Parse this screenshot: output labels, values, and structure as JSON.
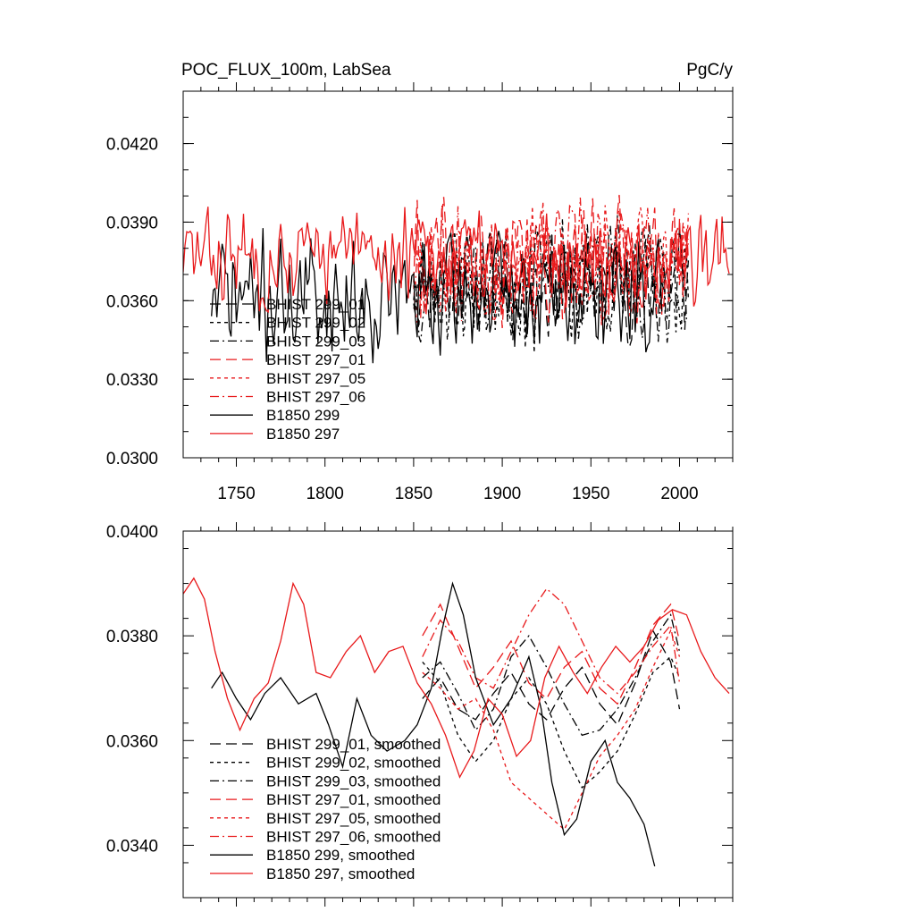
{
  "colors": {
    "black": "#000000",
    "red": "#e8191b"
  },
  "chart_data": [
    {
      "type": "line",
      "title": "POC_FLUX_100m, LabSea",
      "units": "PgC/y",
      "xlim": [
        1720,
        2030
      ],
      "ylim": [
        0.03,
        0.044
      ],
      "xticks": [
        1750,
        1800,
        1850,
        1900,
        1950,
        2000
      ],
      "xtick_labels": [
        "1750",
        "1800",
        "1850",
        "1900",
        "1950",
        "2000"
      ],
      "yticks": [
        0.03,
        0.033,
        0.036,
        0.039,
        0.042
      ],
      "ytick_labels": [
        "0.0300",
        "0.0330",
        "0.0360",
        "0.0390",
        "0.0420"
      ],
      "legend_position": "bottom-left",
      "series": [
        {
          "name": "BHIST 299_01",
          "color": "black",
          "dash": "long-dash",
          "x_range": [
            1850,
            2005
          ],
          "mean": 0.0367,
          "amp": 0.0026,
          "seed": 11
        },
        {
          "name": "BHIST 299_02",
          "color": "black",
          "dash": "short-dash",
          "x_range": [
            1850,
            2005
          ],
          "mean": 0.0366,
          "amp": 0.0028,
          "seed": 23
        },
        {
          "name": "BHIST 299_03",
          "color": "black",
          "dash": "dash-dot",
          "x_range": [
            1850,
            2005
          ],
          "mean": 0.0368,
          "amp": 0.0026,
          "seed": 37
        },
        {
          "name": "BHIST 297_01",
          "color": "red",
          "dash": "long-dash",
          "x_range": [
            1850,
            2005
          ],
          "mean": 0.0375,
          "amp": 0.0027,
          "seed": 41
        },
        {
          "name": "BHIST 297_05",
          "color": "red",
          "dash": "short-dash",
          "x_range": [
            1850,
            2005
          ],
          "mean": 0.0374,
          "amp": 0.0028,
          "seed": 53
        },
        {
          "name": "BHIST 297_06",
          "color": "red",
          "dash": "dash-dot",
          "x_range": [
            1850,
            2005
          ],
          "mean": 0.0376,
          "amp": 0.0027,
          "seed": 67
        },
        {
          "name": "B1850 299",
          "color": "black",
          "dash": "solid",
          "x_range": [
            1736,
            1990
          ],
          "mean": 0.0362,
          "amp": 0.0028,
          "seed": 71
        },
        {
          "name": "B1850 297",
          "color": "red",
          "dash": "solid",
          "x_range": [
            1720,
            2028
          ],
          "mean": 0.0377,
          "amp": 0.0022,
          "seed": 83
        }
      ]
    },
    {
      "type": "line",
      "xlim": [
        1720,
        2030
      ],
      "ylim": [
        0.033,
        0.04
      ],
      "xticks": [
        1750,
        1800,
        1850,
        1900,
        1950,
        2000
      ],
      "yticks": [
        0.034,
        0.036,
        0.038,
        0.04
      ],
      "ytick_labels": [
        "0.0340",
        "0.0360",
        "0.0380",
        "0.0400"
      ],
      "legend_position": "bottom-left",
      "series": [
        {
          "name": "BHIST 299_01, smoothed",
          "color": "black",
          "dash": "long-dash",
          "points": [
            [
              1855,
              0.0368
            ],
            [
              1865,
              0.0372
            ],
            [
              1875,
              0.0366
            ],
            [
              1885,
              0.0364
            ],
            [
              1895,
              0.0369
            ],
            [
              1905,
              0.0373
            ],
            [
              1915,
              0.0367
            ],
            [
              1925,
              0.0364
            ],
            [
              1935,
              0.037
            ],
            [
              1945,
              0.0374
            ],
            [
              1955,
              0.0367
            ],
            [
              1965,
              0.0363
            ],
            [
              1975,
              0.0371
            ],
            [
              1985,
              0.0381
            ],
            [
              1995,
              0.0375
            ],
            [
              2000,
              0.0366
            ]
          ]
        },
        {
          "name": "BHIST 299_02, smoothed",
          "color": "black",
          "dash": "short-dash",
          "points": [
            [
              1855,
              0.0375
            ],
            [
              1865,
              0.0371
            ],
            [
              1875,
              0.0361
            ],
            [
              1885,
              0.0356
            ],
            [
              1895,
              0.036
            ],
            [
              1905,
              0.0368
            ],
            [
              1915,
              0.0372
            ],
            [
              1925,
              0.0367
            ],
            [
              1935,
              0.0358
            ],
            [
              1945,
              0.0351
            ],
            [
              1955,
              0.0354
            ],
            [
              1965,
              0.0358
            ],
            [
              1975,
              0.0365
            ],
            [
              1985,
              0.0373
            ],
            [
              1995,
              0.0376
            ],
            [
              2000,
              0.0372
            ]
          ]
        },
        {
          "name": "BHIST 299_03, smoothed",
          "color": "black",
          "dash": "dash-dot",
          "points": [
            [
              1855,
              0.0372
            ],
            [
              1865,
              0.0375
            ],
            [
              1875,
              0.0369
            ],
            [
              1885,
              0.0362
            ],
            [
              1895,
              0.0366
            ],
            [
              1905,
              0.0376
            ],
            [
              1915,
              0.038
            ],
            [
              1925,
              0.0374
            ],
            [
              1935,
              0.0367
            ],
            [
              1945,
              0.0361
            ],
            [
              1955,
              0.0362
            ],
            [
              1965,
              0.0366
            ],
            [
              1975,
              0.0372
            ],
            [
              1985,
              0.0379
            ],
            [
              1995,
              0.0384
            ],
            [
              2000,
              0.0377
            ]
          ]
        },
        {
          "name": "BHIST 297_01, smoothed",
          "color": "red",
          "dash": "long-dash",
          "points": [
            [
              1855,
              0.038
            ],
            [
              1865,
              0.0386
            ],
            [
              1875,
              0.0378
            ],
            [
              1885,
              0.037
            ],
            [
              1895,
              0.0374
            ],
            [
              1905,
              0.0379
            ],
            [
              1915,
              0.0371
            ],
            [
              1925,
              0.0368
            ],
            [
              1935,
              0.0374
            ],
            [
              1945,
              0.0377
            ],
            [
              1955,
              0.037
            ],
            [
              1965,
              0.0367
            ],
            [
              1975,
              0.0374
            ],
            [
              1985,
              0.0382
            ],
            [
              1995,
              0.0386
            ],
            [
              2000,
              0.0379
            ]
          ]
        },
        {
          "name": "BHIST 297_05, smoothed",
          "color": "red",
          "dash": "short-dash",
          "points": [
            [
              1855,
              0.0373
            ],
            [
              1865,
              0.037
            ],
            [
              1875,
              0.0366
            ],
            [
              1885,
              0.0368
            ],
            [
              1895,
              0.0362
            ],
            [
              1905,
              0.0352
            ],
            [
              1915,
              0.0349
            ],
            [
              1925,
              0.0346
            ],
            [
              1935,
              0.0343
            ],
            [
              1945,
              0.035
            ],
            [
              1955,
              0.0357
            ],
            [
              1965,
              0.0361
            ],
            [
              1975,
              0.0366
            ],
            [
              1985,
              0.0374
            ],
            [
              1995,
              0.0381
            ],
            [
              2000,
              0.0376
            ]
          ]
        },
        {
          "name": "BHIST 297_06, smoothed",
          "color": "red",
          "dash": "dash-dot",
          "points": [
            [
              1855,
              0.0376
            ],
            [
              1865,
              0.0383
            ],
            [
              1875,
              0.0379
            ],
            [
              1885,
              0.0372
            ],
            [
              1895,
              0.037
            ],
            [
              1905,
              0.0377
            ],
            [
              1915,
              0.0384
            ],
            [
              1925,
              0.0389
            ],
            [
              1935,
              0.0386
            ],
            [
              1945,
              0.0379
            ],
            [
              1955,
              0.0372
            ],
            [
              1965,
              0.0369
            ],
            [
              1975,
              0.0373
            ],
            [
              1985,
              0.0378
            ],
            [
              1995,
              0.0382
            ],
            [
              2000,
              0.0371
            ]
          ]
        },
        {
          "name": "B1850 299, smoothed",
          "color": "black",
          "dash": "solid",
          "points": [
            [
              1736,
              0.037
            ],
            [
              1742,
              0.0373
            ],
            [
              1750,
              0.0368
            ],
            [
              1758,
              0.0364
            ],
            [
              1766,
              0.0369
            ],
            [
              1775,
              0.0372
            ],
            [
              1785,
              0.0367
            ],
            [
              1795,
              0.0369
            ],
            [
              1802,
              0.0363
            ],
            [
              1810,
              0.0355
            ],
            [
              1818,
              0.0368
            ],
            [
              1826,
              0.0361
            ],
            [
              1835,
              0.0358
            ],
            [
              1845,
              0.036
            ],
            [
              1852,
              0.0363
            ],
            [
              1860,
              0.037
            ],
            [
              1866,
              0.0381
            ],
            [
              1872,
              0.039
            ],
            [
              1878,
              0.0384
            ],
            [
              1885,
              0.0372
            ],
            [
              1895,
              0.0363
            ],
            [
              1905,
              0.0368
            ],
            [
              1915,
              0.0376
            ],
            [
              1922,
              0.0366
            ],
            [
              1928,
              0.0352
            ],
            [
              1935,
              0.0342
            ],
            [
              1942,
              0.0345
            ],
            [
              1950,
              0.0356
            ],
            [
              1958,
              0.036
            ],
            [
              1965,
              0.0352
            ],
            [
              1972,
              0.0349
            ],
            [
              1980,
              0.0344
            ],
            [
              1986,
              0.0336
            ]
          ]
        },
        {
          "name": "B1850 297, smoothed",
          "color": "red",
          "dash": "solid",
          "points": [
            [
              1720,
              0.0388
            ],
            [
              1726,
              0.0391
            ],
            [
              1732,
              0.0387
            ],
            [
              1738,
              0.0377
            ],
            [
              1745,
              0.0368
            ],
            [
              1752,
              0.0362
            ],
            [
              1760,
              0.0368
            ],
            [
              1768,
              0.0371
            ],
            [
              1775,
              0.0379
            ],
            [
              1782,
              0.039
            ],
            [
              1788,
              0.0386
            ],
            [
              1795,
              0.0373
            ],
            [
              1803,
              0.0372
            ],
            [
              1812,
              0.0377
            ],
            [
              1820,
              0.038
            ],
            [
              1828,
              0.0373
            ],
            [
              1836,
              0.0377
            ],
            [
              1844,
              0.0378
            ],
            [
              1852,
              0.0371
            ],
            [
              1860,
              0.0367
            ],
            [
              1868,
              0.0361
            ],
            [
              1876,
              0.0353
            ],
            [
              1884,
              0.0358
            ],
            [
              1892,
              0.0368
            ],
            [
              1900,
              0.0365
            ],
            [
              1908,
              0.0357
            ],
            [
              1916,
              0.036
            ],
            [
              1924,
              0.0372
            ],
            [
              1932,
              0.0378
            ],
            [
              1940,
              0.0373
            ],
            [
              1948,
              0.0369
            ],
            [
              1956,
              0.0374
            ],
            [
              1964,
              0.0378
            ],
            [
              1972,
              0.0375
            ],
            [
              1980,
              0.0378
            ],
            [
              1988,
              0.0383
            ],
            [
              1996,
              0.0385
            ],
            [
              2004,
              0.0384
            ],
            [
              2012,
              0.0377
            ],
            [
              2020,
              0.0372
            ],
            [
              2028,
              0.0369
            ]
          ]
        }
      ]
    }
  ]
}
